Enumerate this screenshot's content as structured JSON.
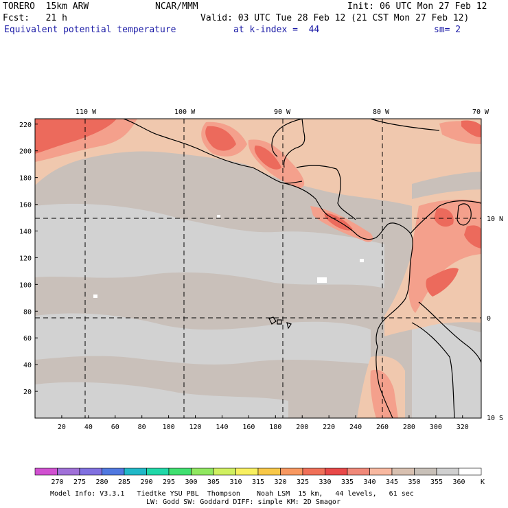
{
  "header": {
    "model": "TORERO  15km ARW",
    "center": "NCAR/MMM",
    "init": "Init: 06 UTC Mon 27 Feb 12",
    "fcst": "Fcst:   21 h",
    "valid": "Valid: 03 UTC Tue 28 Feb 12 (21 CST Mon 27 Feb 12)",
    "field": "Equivalent potential temperature",
    "level": "at k-index =  44",
    "smooth": "sm= 2"
  },
  "map": {
    "lon_labels": [
      "110 W",
      "100 W",
      "90 W",
      "80 W",
      "70 W"
    ],
    "lat_labels": [
      "10 N",
      "0",
      "10 S"
    ],
    "y_ticks": [
      "20",
      "40",
      "60",
      "80",
      "100",
      "120",
      "140",
      "160",
      "180",
      "200",
      "220"
    ],
    "x_ticks": [
      "20",
      "40",
      "60",
      "80",
      "100",
      "120",
      "140",
      "160",
      "180",
      "200",
      "220",
      "240",
      "260",
      "280",
      "300",
      "320"
    ]
  },
  "legend": {
    "values": [
      "270",
      "275",
      "280",
      "285",
      "290",
      "295",
      "300",
      "305",
      "310",
      "315",
      "320",
      "325",
      "330",
      "335",
      "340",
      "345",
      "350",
      "355",
      "360"
    ],
    "unit": "K",
    "colors": [
      "#d050d0",
      "#a070d8",
      "#8070e0",
      "#5078e0",
      "#20b8c8",
      "#20d8a8",
      "#40e070",
      "#90e860",
      "#d0f060",
      "#f8f060",
      "#f8c848",
      "#f89860",
      "#f07058",
      "#e84848",
      "#f08878",
      "#f8b8a0",
      "#d8c0b0",
      "#c8c0b8",
      "#d0d0d0",
      "#ffffff"
    ]
  },
  "footer": {
    "line1": "Model Info: V3.3.1   Tiedtke YSU PBL  Thompson    Noah LSM  15 km,   44 levels,   61 sec",
    "line2": "LW: Godd SW: Goddard DIFF: simple KM: 2D Smagor"
  }
}
